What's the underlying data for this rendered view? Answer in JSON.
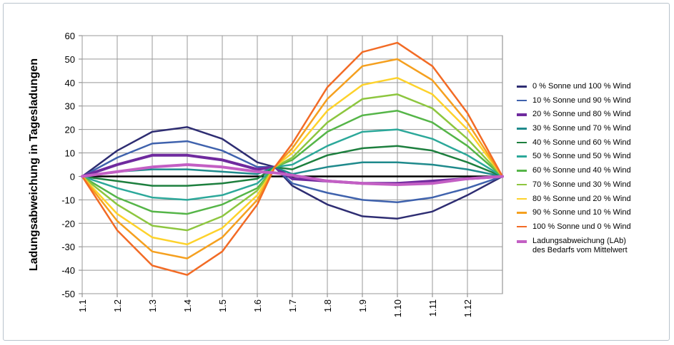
{
  "chart_data": {
    "type": "line",
    "y_label": "Ladungsabweichung in Tagesladungen",
    "x": [
      0,
      1,
      2,
      3,
      4,
      5,
      5.5,
      6,
      7,
      8,
      9,
      10,
      11,
      12
    ],
    "xlim": [
      0,
      12
    ],
    "xticks": [
      {
        "value": 0,
        "label": "1.1"
      },
      {
        "value": 1,
        "label": "1.2"
      },
      {
        "value": 2,
        "label": "1.3"
      },
      {
        "value": 3,
        "label": "1.4"
      },
      {
        "value": 4,
        "label": "1.5"
      },
      {
        "value": 5,
        "label": "1.6"
      },
      {
        "value": 6,
        "label": "1.7"
      },
      {
        "value": 7,
        "label": "1.8"
      },
      {
        "value": 8,
        "label": "1.9"
      },
      {
        "value": 9,
        "label": "1.10"
      },
      {
        "value": 10,
        "label": "1.11"
      },
      {
        "value": 11,
        "label": "1.12"
      }
    ],
    "ylim": [
      -50,
      60
    ],
    "yticks": [
      -50,
      -40,
      -30,
      -20,
      -10,
      0,
      10,
      20,
      30,
      40,
      50,
      60
    ],
    "grid": true,
    "legend": "right",
    "series": [
      {
        "name": "0 % Sonne und 100 % Wind",
        "color": "#2e2d72",
        "line_width": 2.5,
        "values": [
          0,
          11,
          19,
          21,
          16,
          6,
          4,
          -4,
          -12,
          -17,
          -18,
          -15,
          -8,
          0
        ]
      },
      {
        "name": "10 % Sonne und 90 % Wind",
        "color": "#3f62ad",
        "line_width": 2.5,
        "values": [
          0,
          8,
          14,
          15,
          11,
          4,
          4,
          -3,
          -7,
          -10,
          -11,
          -9,
          -5,
          0
        ]
      },
      {
        "name": "20 % Sonne und 80 % Wind",
        "color": "#6f2a9e",
        "line_width": 4,
        "values": [
          0,
          5,
          9,
          9,
          7,
          3,
          4,
          -1,
          -2,
          -3,
          -3,
          -2,
          -1,
          0
        ]
      },
      {
        "name": "30 % Sonne und 70 % Wind",
        "color": "#1f8a8c",
        "line_width": 2.5,
        "values": [
          0,
          2,
          3,
          3,
          2,
          1,
          4,
          1,
          4,
          6,
          6,
          5,
          3,
          0
        ]
      },
      {
        "name": "40 % Sonne und 60 % Wind",
        "color": "#1d7f3e",
        "line_width": 2.5,
        "values": [
          0,
          -2,
          -4,
          -4,
          -3,
          -1,
          4,
          3,
          9,
          12,
          13,
          11,
          6,
          0
        ]
      },
      {
        "name": "50 % Sonne und 50 % Wind",
        "color": "#2ca89a",
        "line_width": 2.5,
        "values": [
          0,
          -5,
          -9,
          -10,
          -8,
          -3,
          4,
          5,
          13,
          19,
          20,
          16,
          9,
          0
        ]
      },
      {
        "name": "60 % Sonne und 40 % Wind",
        "color": "#55b548",
        "line_width": 2.5,
        "values": [
          0,
          -9,
          -15,
          -16,
          -12,
          -5,
          4,
          7,
          19,
          26,
          28,
          23,
          13,
          0
        ]
      },
      {
        "name": "70 % Sonne und 30 % Wind",
        "color": "#8dc63f",
        "line_width": 2.5,
        "values": [
          0,
          -12,
          -21,
          -23,
          -17,
          -6,
          4,
          8,
          23,
          33,
          35,
          29,
          16,
          0
        ]
      },
      {
        "name": "80 % Sonne und 20 % Wind",
        "color": "#fdd22b",
        "line_width": 2.5,
        "values": [
          0,
          -16,
          -26,
          -29,
          -22,
          -8,
          4,
          10,
          28,
          39,
          42,
          35,
          20,
          0
        ]
      },
      {
        "name": "90 % Sonne und 10 % Wind",
        "color": "#f5a01f",
        "line_width": 2.5,
        "values": [
          0,
          -19,
          -32,
          -35,
          -26,
          -10,
          4,
          12,
          33,
          47,
          50,
          41,
          23,
          0
        ]
      },
      {
        "name": "100 % Sonne und 0 % Wind",
        "color": "#f26b25",
        "line_width": 2.5,
        "values": [
          0,
          -23,
          -38,
          -42,
          -32,
          -12,
          4,
          14,
          38,
          53,
          57,
          47,
          27,
          0
        ]
      },
      {
        "name": "Ladungsabweichung (LAb) des Bedarfs vom Mittelwert",
        "color": "#c35fc4",
        "line_width": 4,
        "values": [
          0,
          2,
          4,
          5,
          4,
          2,
          1.5,
          0.5,
          -2,
          -3,
          -3.5,
          -3,
          -1,
          0
        ]
      }
    ]
  }
}
